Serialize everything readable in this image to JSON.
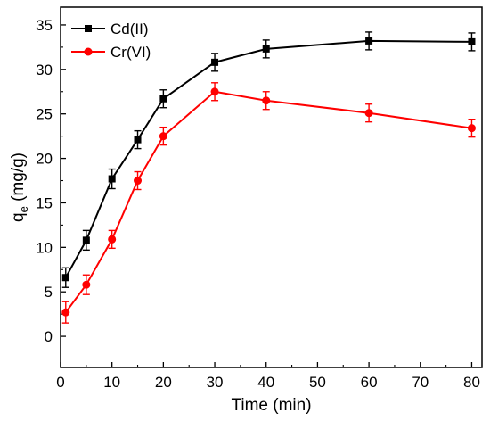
{
  "chart_data": {
    "type": "line",
    "x": [
      1,
      5,
      10,
      15,
      20,
      30,
      40,
      60,
      80
    ],
    "series": [
      {
        "name": "Cd(II)",
        "color": "#000000",
        "marker": "square",
        "values": [
          6.6,
          10.8,
          17.7,
          22.1,
          26.7,
          30.8,
          32.3,
          33.2,
          33.1
        ],
        "errors": [
          1.1,
          1.1,
          1.1,
          1.0,
          1.0,
          1.0,
          1.0,
          1.0,
          1.0
        ]
      },
      {
        "name": "Cr(VI)",
        "color": "#ff0000",
        "marker": "circle",
        "values": [
          2.7,
          5.8,
          10.9,
          17.5,
          22.5,
          27.5,
          26.5,
          25.1,
          23.4
        ],
        "errors": [
          1.2,
          1.1,
          1.0,
          1.0,
          1.0,
          1.0,
          1.0,
          1.0,
          1.0
        ]
      }
    ],
    "xlabel": "Time (min)",
    "ylabel_main": "q",
    "ylabel_sub": "e",
    "ylabel_unit": " (mg/g)",
    "xlim": [
      0,
      82
    ],
    "ylim": [
      -3.5,
      37
    ],
    "xticks": [
      0,
      10,
      20,
      30,
      40,
      50,
      60,
      70,
      80
    ],
    "yticks": [
      0,
      5,
      10,
      15,
      20,
      25,
      30,
      35
    ],
    "grid": false,
    "legend_position": "top-left"
  }
}
